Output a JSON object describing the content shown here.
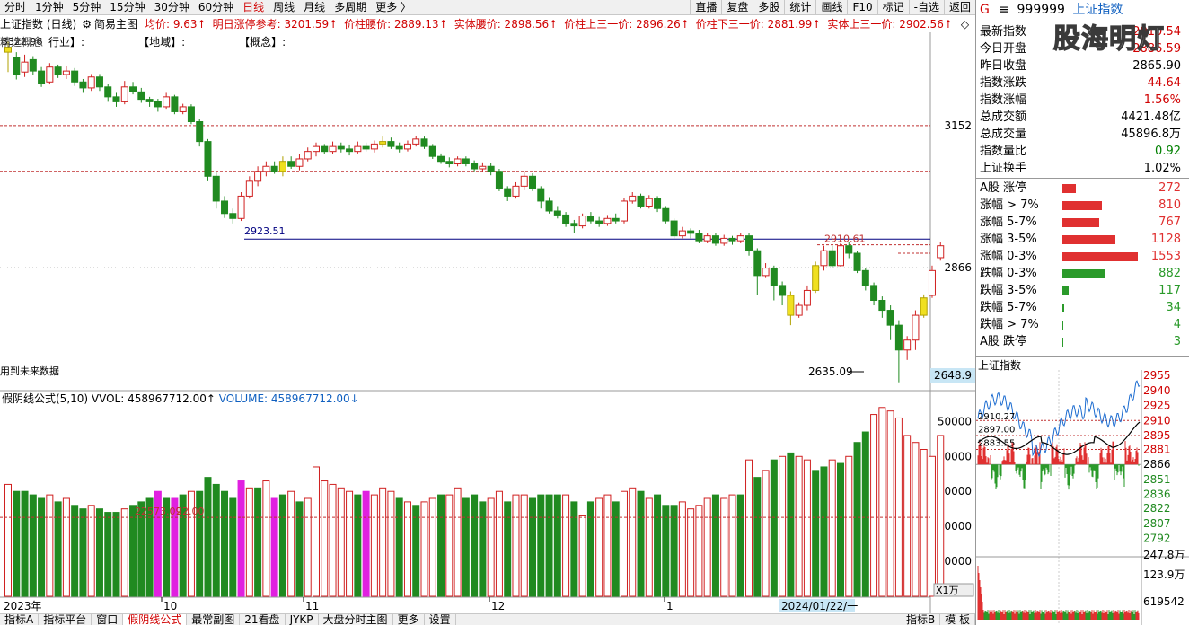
{
  "topbar": {
    "timeframes": [
      "分时",
      "1分钟",
      "5分钟",
      "15分钟",
      "30分钟",
      "60分钟",
      "日线",
      "周线",
      "月线",
      "多周期",
      "更多 〉"
    ],
    "active_index": 6,
    "right_buttons": [
      "直播",
      "复盘",
      "多股",
      "统计",
      "画线",
      "F10",
      "标记",
      "-自选",
      "返回"
    ]
  },
  "infobar": {
    "title": "上证指数 (日线)",
    "indicator": "简易主图",
    "items": [
      "均价: 9.63↑",
      "明日涨停参考: 3201.59↑",
      "价柱腰价: 2889.13↑",
      "实体腰价: 2898.56↑",
      "价柱上三一价: 2896.26↑",
      "价柱下三一价: 2881.99↑",
      "实体上三一价: 2902.56↑"
    ]
  },
  "tagline": [
    "行业】:",
    "【地域】:",
    "【概念】:"
  ],
  "tagline_prefix": "精选概念",
  "main_chart": {
    "y_ticks": [
      "3152",
      "2866"
    ],
    "current_price_label": "2648.9",
    "annotations": {
      "left_high": "2923.51",
      "right_high": "2910.61",
      "low": "2635.09",
      "future_note": "用到未来数据",
      "top_left": "3322.96"
    },
    "x_labels": [
      "2023年",
      "10",
      "11",
      "12",
      "1"
    ],
    "date_box": "2024/01/22/一"
  },
  "volume_panel": {
    "header_name": "假阴线公式(5,10)",
    "vvol": "VVOL: 458967712.00↑",
    "volume": "VOLUME: 458967712.00↓",
    "y_ticks": [
      "50000",
      "40000",
      "30000",
      "20000",
      "10000"
    ],
    "unit": "X1万",
    "ma_label": "22573.09",
    "ma_label2": "22.00"
  },
  "bottombar": [
    "指标A",
    "指标平台",
    "窗口",
    "假阴线公式",
    "最常副图",
    "21看盘",
    "JYKP",
    "大盘分时主图",
    "更多",
    "设置",
    "指标B",
    "模 板"
  ],
  "bottombar_active": 3,
  "right_panel": {
    "symbol_prefix": "G",
    "code": "999999",
    "name": "上证指数",
    "watermark": "股海明灯",
    "quote_rows": [
      {
        "label": "最新指数",
        "value": "2910.54",
        "color": "#d00000"
      },
      {
        "label": "今日开盘",
        "value": "2886.59",
        "color": "#d00000"
      },
      {
        "label": "昨日收盘",
        "value": "2865.90",
        "color": "#000000"
      },
      {
        "label": "指数涨跌",
        "value": "44.64",
        "color": "#d00000"
      },
      {
        "label": "指数涨幅",
        "value": "1.56%",
        "color": "#d00000"
      },
      {
        "label": "总成交额",
        "value": "4421.48亿",
        "color": "#000000"
      },
      {
        "label": "总成交量",
        "value": "45896.8万",
        "color": "#000000"
      },
      {
        "label": "指数量比",
        "value": "0.92",
        "color": "#008000"
      },
      {
        "label": "上证换手",
        "value": "1.02%",
        "color": "#000000"
      }
    ],
    "breadth_rows": [
      {
        "label": "A股 涨停",
        "value": "272",
        "color": "#e03030",
        "bar": 0.18
      },
      {
        "label": "涨幅 > 7%",
        "value": "810",
        "color": "#e03030",
        "bar": 0.52
      },
      {
        "label": "涨幅 5-7%",
        "value": "767",
        "color": "#e03030",
        "bar": 0.49
      },
      {
        "label": "涨幅 3-5%",
        "value": "1128",
        "color": "#e03030",
        "bar": 0.7
      },
      {
        "label": "涨幅 0-3%",
        "value": "1553",
        "color": "#e03030",
        "bar": 1.0
      },
      {
        "label": "跌幅 0-3%",
        "value": "882",
        "color": "#2a9a2a",
        "bar": 0.56
      },
      {
        "label": "跌幅 3-5%",
        "value": "117",
        "color": "#2a9a2a",
        "bar": 0.08
      },
      {
        "label": "跌幅 5-7%",
        "value": "34",
        "color": "#2a9a2a",
        "bar": 0.02
      },
      {
        "label": "跌幅 > 7%",
        "value": "4",
        "color": "#2a9a2a",
        "bar": 0.01
      },
      {
        "label": "A股 跌停",
        "value": "3",
        "color": "#2a9a2a",
        "bar": 0.01
      }
    ],
    "mini_title": "上证指数",
    "mini_y_ticks": [
      "2955",
      "2940",
      "2925",
      "2910",
      "2895",
      "2881",
      "2866",
      "2851",
      "2836",
      "2822",
      "2807",
      "2792"
    ],
    "mini_vol_ticks": [
      "247.8万",
      "123.9万",
      "619542"
    ],
    "mini_labels": [
      "2910.27",
      "2897.00",
      "2883.55"
    ]
  },
  "chart_data": {
    "type": "candlestick",
    "candles": [
      [
        3300,
        3310,
        3260,
        3322
      ],
      [
        3290,
        3255,
        3245,
        3300
      ],
      [
        3260,
        3280,
        3250,
        3295
      ],
      [
        3285,
        3262,
        3255,
        3292
      ],
      [
        3262,
        3236,
        3230,
        3270
      ],
      [
        3240,
        3270,
        3235,
        3278
      ],
      [
        3270,
        3255,
        3248,
        3275
      ],
      [
        3255,
        3262,
        3246,
        3272
      ],
      [
        3262,
        3240,
        3232,
        3268
      ],
      [
        3240,
        3228,
        3218,
        3246
      ],
      [
        3228,
        3250,
        3222,
        3256
      ],
      [
        3250,
        3230,
        3222,
        3256
      ],
      [
        3230,
        3210,
        3200,
        3236
      ],
      [
        3210,
        3200,
        3190,
        3218
      ],
      [
        3200,
        3230,
        3195,
        3242
      ],
      [
        3230,
        3220,
        3215,
        3240
      ],
      [
        3220,
        3205,
        3198,
        3228
      ],
      [
        3205,
        3200,
        3190,
        3210
      ],
      [
        3200,
        3190,
        3180,
        3206
      ],
      [
        3190,
        3210,
        3186,
        3218
      ],
      [
        3210,
        3180,
        3175,
        3214
      ],
      [
        3180,
        3190,
        3175,
        3196
      ],
      [
        3190,
        3160,
        3155,
        3195
      ],
      [
        3160,
        3120,
        3110,
        3166
      ],
      [
        3120,
        3050,
        3040,
        3125
      ],
      [
        3050,
        3000,
        2985,
        3060
      ],
      [
        3000,
        2975,
        2966,
        3010
      ],
      [
        2975,
        2965,
        2955,
        2985
      ],
      [
        2965,
        3010,
        2960,
        3018
      ],
      [
        3010,
        3040,
        3005,
        3050
      ],
      [
        3040,
        3060,
        3030,
        3070
      ],
      [
        3060,
        3070,
        3050,
        3080
      ],
      [
        3070,
        3060,
        3055,
        3080
      ],
      [
        3060,
        3080,
        3050,
        3090
      ],
      [
        3080,
        3070,
        3065,
        3090
      ],
      [
        3070,
        3085,
        3062,
        3095
      ],
      [
        3085,
        3100,
        3080,
        3108
      ],
      [
        3100,
        3110,
        3090,
        3118
      ],
      [
        3110,
        3100,
        3094,
        3115
      ],
      [
        3100,
        3110,
        3095,
        3120
      ],
      [
        3110,
        3105,
        3098,
        3118
      ],
      [
        3105,
        3100,
        3092,
        3114
      ],
      [
        3100,
        3110,
        3096,
        3120
      ],
      [
        3110,
        3105,
        3100,
        3118
      ],
      [
        3105,
        3115,
        3098,
        3122
      ],
      [
        3115,
        3120,
        3108,
        3130
      ],
      [
        3120,
        3110,
        3105,
        3128
      ],
      [
        3110,
        3105,
        3098,
        3118
      ],
      [
        3105,
        3115,
        3100,
        3122
      ],
      [
        3115,
        3125,
        3110,
        3132
      ],
      [
        3125,
        3110,
        3105,
        3130
      ],
      [
        3110,
        3090,
        3085,
        3115
      ],
      [
        3090,
        3080,
        3075,
        3096
      ],
      [
        3080,
        3075,
        3068,
        3088
      ],
      [
        3075,
        3085,
        3070,
        3090
      ],
      [
        3085,
        3075,
        3070,
        3090
      ],
      [
        3075,
        3065,
        3060,
        3082
      ],
      [
        3065,
        3070,
        3060,
        3078
      ],
      [
        3070,
        3060,
        3052,
        3076
      ],
      [
        3060,
        3025,
        3020,
        3065
      ],
      [
        3025,
        3010,
        3000,
        3030
      ],
      [
        3010,
        3030,
        3005,
        3038
      ],
      [
        3030,
        3050,
        3022,
        3060
      ],
      [
        3050,
        3025,
        3020,
        3056
      ],
      [
        3025,
        3000,
        2985,
        3030
      ],
      [
        3000,
        2980,
        2975,
        3008
      ],
      [
        2980,
        2972,
        2965,
        2990
      ],
      [
        2972,
        2955,
        2948,
        2978
      ],
      [
        2955,
        2950,
        2935,
        2962
      ],
      [
        2950,
        2970,
        2945,
        2975
      ],
      [
        2970,
        2960,
        2955,
        2978
      ],
      [
        2960,
        2955,
        2948,
        2968
      ],
      [
        2955,
        2965,
        2950,
        2972
      ],
      [
        2965,
        2960,
        2955,
        2975
      ],
      [
        2960,
        3000,
        2955,
        3006
      ],
      [
        3000,
        3010,
        2995,
        3018
      ],
      [
        3010,
        2990,
        2985,
        3015
      ],
      [
        2990,
        3005,
        2985,
        3012
      ],
      [
        3005,
        2985,
        2978,
        3010
      ],
      [
        2985,
        2960,
        2955,
        2990
      ],
      [
        2960,
        2930,
        2925,
        2965
      ],
      [
        2930,
        2940,
        2925,
        2948
      ],
      [
        2940,
        2935,
        2925,
        2945
      ],
      [
        2935,
        2920,
        2915,
        2942
      ],
      [
        2920,
        2930,
        2915,
        2936
      ],
      [
        2930,
        2915,
        2910,
        2935
      ],
      [
        2915,
        2925,
        2910,
        2932
      ],
      [
        2925,
        2920,
        2912,
        2930
      ],
      [
        2920,
        2930,
        2915,
        2936
      ],
      [
        2930,
        2900,
        2890,
        2935
      ],
      [
        2900,
        2850,
        2810,
        2905
      ],
      [
        2850,
        2865,
        2845,
        2875
      ],
      [
        2865,
        2830,
        2800,
        2870
      ],
      [
        2830,
        2810,
        2790,
        2838
      ],
      [
        2810,
        2770,
        2750,
        2818
      ],
      [
        2770,
        2790,
        2765,
        2796
      ],
      [
        2790,
        2820,
        2780,
        2830
      ],
      [
        2820,
        2870,
        2815,
        2878
      ],
      [
        2870,
        2900,
        2860,
        2910
      ],
      [
        2900,
        2870,
        2865,
        2910
      ],
      [
        2870,
        2910,
        2868,
        2915
      ],
      [
        2910,
        2895,
        2885,
        2918
      ],
      [
        2895,
        2860,
        2855,
        2900
      ],
      [
        2860,
        2830,
        2820,
        2865
      ],
      [
        2830,
        2800,
        2790,
        2836
      ],
      [
        2800,
        2780,
        2765,
        2808
      ],
      [
        2780,
        2750,
        2720,
        2790
      ],
      [
        2750,
        2700,
        2635,
        2760
      ],
      [
        2700,
        2720,
        2680,
        2728
      ],
      [
        2720,
        2770,
        2700,
        2780
      ],
      [
        2770,
        2805,
        2765,
        2812
      ],
      [
        2810,
        2860,
        2805,
        2870
      ],
      [
        2886,
        2910,
        2880,
        2918
      ]
    ],
    "volumes": [
      [
        0,
        32000
      ],
      [
        1,
        30000
      ],
      [
        1,
        30000
      ],
      [
        1,
        29000
      ],
      [
        1,
        28000
      ],
      [
        0,
        29000
      ],
      [
        1,
        27000
      ],
      [
        0,
        28000
      ],
      [
        1,
        26000
      ],
      [
        1,
        25000
      ],
      [
        0,
        26000
      ],
      [
        1,
        25000
      ],
      [
        1,
        24000
      ],
      [
        1,
        24000
      ],
      [
        0,
        25000
      ],
      [
        1,
        26000
      ],
      [
        1,
        27000
      ],
      [
        1,
        28000
      ],
      [
        2,
        30000
      ],
      [
        1,
        28000
      ],
      [
        2,
        28000
      ],
      [
        1,
        29000
      ],
      [
        0,
        30000
      ],
      [
        1,
        30000
      ],
      [
        1,
        34000
      ],
      [
        1,
        32000
      ],
      [
        1,
        30000
      ],
      [
        1,
        28000
      ],
      [
        2,
        33000
      ],
      [
        0,
        31000
      ],
      [
        1,
        31000
      ],
      [
        0,
        33000
      ],
      [
        2,
        28000
      ],
      [
        1,
        29000
      ],
      [
        0,
        30000
      ],
      [
        1,
        27000
      ],
      [
        0,
        28000
      ],
      [
        0,
        37000
      ],
      [
        0,
        33000
      ],
      [
        0,
        32000
      ],
      [
        0,
        31000
      ],
      [
        0,
        30000
      ],
      [
        1,
        29000
      ],
      [
        2,
        30000
      ],
      [
        0,
        29000
      ],
      [
        0,
        31000
      ],
      [
        0,
        30000
      ],
      [
        1,
        28000
      ],
      [
        0,
        27000
      ],
      [
        1,
        26000
      ],
      [
        0,
        27000
      ],
      [
        0,
        28000
      ],
      [
        1,
        29000
      ],
      [
        0,
        29000
      ],
      [
        0,
        31000
      ],
      [
        1,
        28000
      ],
      [
        1,
        29000
      ],
      [
        1,
        27000
      ],
      [
        0,
        28000
      ],
      [
        0,
        30000
      ],
      [
        1,
        27000
      ],
      [
        0,
        29000
      ],
      [
        0,
        29000
      ],
      [
        1,
        28000
      ],
      [
        1,
        29000
      ],
      [
        1,
        29000
      ],
      [
        1,
        29000
      ],
      [
        0,
        29000
      ],
      [
        1,
        27000
      ],
      [
        0,
        23000
      ],
      [
        1,
        27000
      ],
      [
        0,
        28000
      ],
      [
        0,
        29000
      ],
      [
        1,
        27000
      ],
      [
        0,
        30000
      ],
      [
        0,
        31000
      ],
      [
        1,
        30000
      ],
      [
        0,
        28000
      ],
      [
        1,
        29000
      ],
      [
        1,
        26000
      ],
      [
        1,
        26000
      ],
      [
        0,
        27000
      ],
      [
        0,
        25000
      ],
      [
        0,
        26000
      ],
      [
        0,
        28000
      ],
      [
        1,
        29000
      ],
      [
        0,
        28000
      ],
      [
        0,
        29000
      ],
      [
        1,
        29000
      ],
      [
        0,
        39000
      ],
      [
        1,
        34000
      ],
      [
        0,
        36000
      ],
      [
        1,
        39000
      ],
      [
        0,
        40000
      ],
      [
        1,
        41000
      ],
      [
        0,
        40000
      ],
      [
        0,
        39000
      ],
      [
        1,
        36000
      ],
      [
        1,
        37000
      ],
      [
        0,
        39000
      ],
      [
        1,
        38000
      ],
      [
        0,
        40000
      ],
      [
        1,
        44000
      ],
      [
        1,
        47000
      ],
      [
        0,
        52000
      ],
      [
        0,
        54000
      ],
      [
        0,
        53000
      ],
      [
        0,
        51000
      ],
      [
        0,
        46000
      ],
      [
        0,
        44000
      ],
      [
        0,
        42000
      ],
      [
        0,
        40000
      ],
      [
        0,
        46000
      ]
    ]
  }
}
